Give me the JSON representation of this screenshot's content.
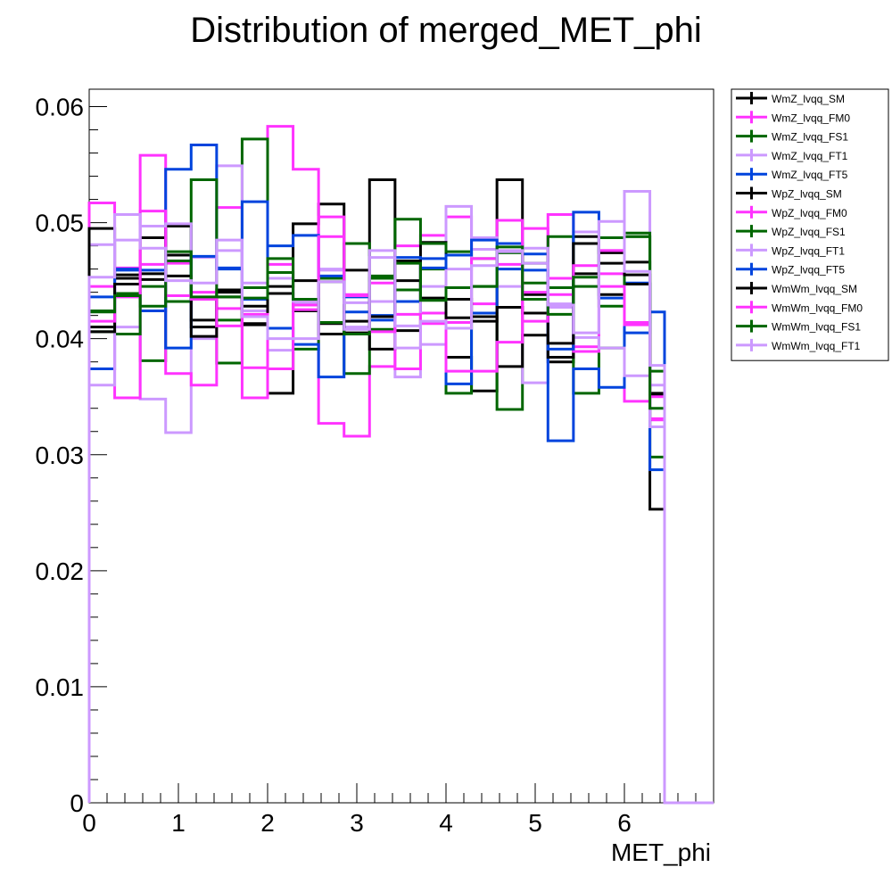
{
  "chart_data": {
    "type": "line",
    "title": "Distribution of merged_MET_phi",
    "xlabel": "MET_phi",
    "ylabel": "",
    "xlim": [
      0,
      7
    ],
    "ylim": [
      0,
      0.0615
    ],
    "x_ticks": [
      "0",
      "1",
      "2",
      "3",
      "4",
      "5",
      "6"
    ],
    "y_ticks": [
      "0",
      "0.01",
      "0.02",
      "0.03",
      "0.04",
      "0.05",
      "0.06"
    ],
    "bin_edges": [
      0,
      0.2857,
      0.5714,
      0.8571,
      1.1429,
      1.4286,
      1.7143,
      2.0,
      2.2857,
      2.5714,
      2.8571,
      3.1429,
      3.4286,
      3.7143,
      4.0,
      4.2857,
      4.5714,
      4.8571,
      5.1429,
      5.4286,
      5.7143,
      6.0,
      6.2857,
      6.45,
      7.0
    ],
    "grid": false,
    "legend_position": "top-right",
    "series": [
      {
        "name": "WmZ_lvqq_SM",
        "color": "#000000",
        "values": [
          0.041,
          0.0455,
          0.0487,
          0.0472,
          0.041,
          0.044,
          0.0413,
          0.0353,
          0.0499,
          0.0516,
          0.0405,
          0.0537,
          0.045,
          0.0434,
          0.0384,
          0.0355,
          0.0537,
          0.0438,
          0.038,
          0.0456,
          0.0438,
          0.0466,
          0.0253,
          0,
          0
        ]
      },
      {
        "name": "WmZ_lvqq_FM0",
        "color": "#ff33ff",
        "values": [
          0.0517,
          0.0461,
          0.0558,
          0.0465,
          0.044,
          0.0513,
          0.0349,
          0.0583,
          0.0546,
          0.0327,
          0.0316,
          0.0376,
          0.048,
          0.0489,
          0.0505,
          0.043,
          0.0502,
          0.044,
          0.0507,
          0.0393,
          0.0456,
          0.0346,
          0.033,
          0,
          0
        ]
      },
      {
        "name": "WmZ_lvqq_FS1",
        "color": "#006600",
        "values": [
          0.0424,
          0.0439,
          0.0381,
          0.0467,
          0.0435,
          0.0379,
          0.0572,
          0.0374,
          0.0391,
          0.0452,
          0.037,
          0.0408,
          0.0442,
          0.046,
          0.0353,
          0.0445,
          0.0339,
          0.0465,
          0.0444,
          0.0353,
          0.0392,
          0.0488,
          0.0298,
          0,
          0
        ]
      },
      {
        "name": "WmZ_lvqq_FT1",
        "color": "#cc99ff",
        "values": [
          0.0481,
          0.041,
          0.0348,
          0.0319,
          0.04,
          0.0549,
          0.0448,
          0.039,
          0.043,
          0.046,
          0.041,
          0.0432,
          0.0367,
          0.0395,
          0.0514,
          0.0477,
          0.0445,
          0.0362,
          0.0427,
          0.0492,
          0.0476,
          0.0527,
          0.036,
          0,
          0
        ]
      },
      {
        "name": "WmZ_lvqq_FT5",
        "color": "#0044dd",
        "values": [
          0.0374,
          0.0459,
          0.0424,
          0.0546,
          0.0567,
          0.0461,
          0.0518,
          0.0409,
          0.0395,
          0.0367,
          0.0423,
          0.0416,
          0.0432,
          0.0469,
          0.0361,
          0.0422,
          0.0482,
          0.0473,
          0.0312,
          0.0374,
          0.0358,
          0.0448,
          0.0287,
          0,
          0
        ]
      },
      {
        "name": "WpZ_lvqq_SM",
        "color": "#000000",
        "values": [
          0.0495,
          0.0452,
          0.0456,
          0.0497,
          0.0416,
          0.0442,
          0.0428,
          0.0439,
          0.0424,
          0.0413,
          0.0459,
          0.0391,
          0.0407,
          0.0483,
          0.0434,
          0.0419,
          0.0376,
          0.0403,
          0.0384,
          0.0488,
          0.0474,
          0.0447,
          0.0353,
          0,
          0
        ]
      },
      {
        "name": "WpZ_lvqq_FM0",
        "color": "#ff33ff",
        "values": [
          0.0445,
          0.0349,
          0.051,
          0.037,
          0.036,
          0.0426,
          0.0375,
          0.0464,
          0.0425,
          0.0505,
          0.0438,
          0.0448,
          0.0374,
          0.0422,
          0.0372,
          0.0372,
          0.0397,
          0.0495,
          0.0438,
          0.0389,
          0.0476,
          0.0414,
          0.0331,
          0,
          0
        ]
      },
      {
        "name": "WpZ_lvqq_FS1",
        "color": "#006600",
        "values": [
          0.0406,
          0.0404,
          0.0445,
          0.0432,
          0.0537,
          0.0416,
          0.0444,
          0.0457,
          0.0432,
          0.0449,
          0.0482,
          0.0454,
          0.0503,
          0.0482,
          0.0475,
          0.0469,
          0.0474,
          0.0448,
          0.0488,
          0.0445,
          0.0428,
          0.0488,
          0.0372,
          0,
          0
        ]
      },
      {
        "name": "WpZ_lvqq_FT1",
        "color": "#cc99ff",
        "values": [
          0.036,
          0.0485,
          0.0497,
          0.0499,
          0.047,
          0.0485,
          0.0424,
          0.0452,
          0.0432,
          0.0459,
          0.0431,
          0.0476,
          0.0392,
          0.0445,
          0.046,
          0.0487,
          0.0475,
          0.0478,
          0.043,
          0.0401,
          0.0392,
          0.0368,
          0.0324,
          0,
          0
        ]
      },
      {
        "name": "WpZ_lvqq_FT5",
        "color": "#0044dd",
        "values": [
          0.0436,
          0.046,
          0.0459,
          0.0392,
          0.0471,
          0.046,
          0.0434,
          0.048,
          0.0489,
          0.0454,
          0.0436,
          0.042,
          0.047,
          0.0461,
          0.0472,
          0.0485,
          0.046,
          0.0459,
          0.0391,
          0.0509,
          0.0435,
          0.0405,
          0.0423,
          0,
          0
        ]
      },
      {
        "name": "WmWm_lvqq_SM",
        "color": "#000000",
        "values": [
          0.0406,
          0.0447,
          0.0451,
          0.0454,
          0.0402,
          0.0436,
          0.0412,
          0.0445,
          0.045,
          0.0404,
          0.0415,
          0.0419,
          0.0467,
          0.0435,
          0.0418,
          0.0415,
          0.0427,
          0.0422,
          0.0396,
          0.0482,
          0.0465,
          0.0455,
          0.0352,
          0,
          0
        ]
      },
      {
        "name": "WmWm_lvqq_FM0",
        "color": "#ff33ff",
        "values": [
          0.0415,
          0.0436,
          0.0464,
          0.0437,
          0.0434,
          0.0411,
          0.0421,
          0.0374,
          0.0429,
          0.0488,
          0.0437,
          0.0406,
          0.0421,
          0.0413,
          0.0414,
          0.0469,
          0.0464,
          0.0415,
          0.0452,
          0.0463,
          0.0445,
          0.0412,
          0.035,
          0,
          0
        ]
      },
      {
        "name": "WmWm_lvqq_FS1",
        "color": "#006600",
        "values": [
          0.0423,
          0.0437,
          0.0428,
          0.0475,
          0.0436,
          0.0436,
          0.0435,
          0.0469,
          0.0434,
          0.0414,
          0.0404,
          0.0452,
          0.0465,
          0.0433,
          0.0444,
          0.0445,
          0.0479,
          0.0434,
          0.0421,
          0.0453,
          0.0487,
          0.0491,
          0.034,
          0,
          0
        ]
      },
      {
        "name": "WmWm_lvqq_FT1",
        "color": "#cc99ff",
        "values": [
          0.0453,
          0.0507,
          0.0478,
          0.045,
          0.0448,
          0.0476,
          0.0419,
          0.04,
          0.04,
          0.0449,
          0.0408,
          0.047,
          0.0411,
          0.0415,
          0.0409,
          0.0463,
          0.0476,
          0.0465,
          0.0429,
          0.0405,
          0.0501,
          0.0458,
          0.0377,
          0,
          0
        ]
      }
    ]
  }
}
